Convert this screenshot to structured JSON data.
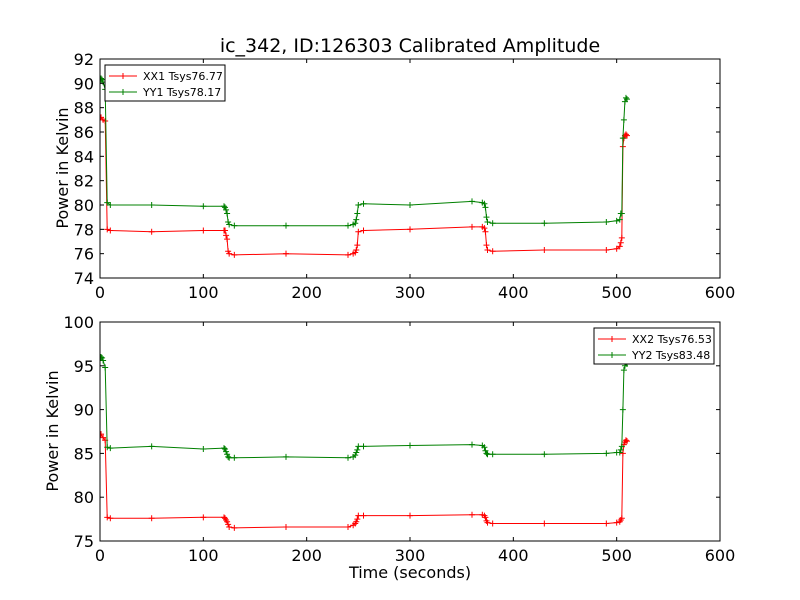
{
  "chart_data": [
    {
      "type": "line",
      "title": "ic_342, ID:126303 Calibrated Amplitude",
      "xlabel": "",
      "ylabel": "Power in Kelvin",
      "xlim": [
        0,
        600
      ],
      "ylim": [
        74,
        92
      ],
      "xticks": [
        "0",
        "100",
        "200",
        "300",
        "400",
        "500",
        "600"
      ],
      "yticks": [
        "74",
        "76",
        "78",
        "80",
        "82",
        "84",
        "86",
        "88",
        "90",
        "92"
      ],
      "legend_position": "top-left",
      "grid": false,
      "series": [
        {
          "name": "XX1 Tsys76.77",
          "color": "#ff0000",
          "x": [
            1,
            3,
            5,
            7,
            10,
            50,
            100,
            120,
            121,
            122,
            123,
            124,
            125,
            130,
            180,
            240,
            245,
            247,
            248,
            249,
            250,
            255,
            300,
            360,
            370,
            372,
            373,
            374,
            375,
            380,
            430,
            490,
            500,
            503,
            504,
            505,
            506,
            507,
            508,
            509,
            510
          ],
          "y": [
            87.2,
            87.0,
            86.9,
            78.0,
            77.9,
            77.8,
            77.9,
            77.9,
            77.9,
            77.5,
            77.2,
            76.2,
            76.0,
            75.9,
            76.0,
            75.9,
            76.0,
            76.1,
            76.3,
            76.7,
            77.8,
            77.9,
            78.0,
            78.2,
            78.2,
            78.1,
            77.8,
            76.7,
            76.3,
            76.2,
            76.3,
            76.3,
            76.4,
            76.6,
            76.9,
            77.3,
            84.8,
            85.5,
            85.7,
            85.8,
            85.7
          ]
        },
        {
          "name": "YY1 Tsys78.17",
          "color": "#008000",
          "x": [
            1,
            2,
            3,
            5,
            7,
            10,
            50,
            100,
            120,
            121,
            122,
            123,
            124,
            125,
            130,
            180,
            240,
            245,
            247,
            248,
            249,
            250,
            255,
            300,
            360,
            370,
            372,
            373,
            374,
            375,
            380,
            430,
            490,
            500,
            503,
            504,
            505,
            506,
            507,
            508,
            509,
            510
          ],
          "y": [
            90.4,
            90.3,
            90.1,
            89.5,
            80.2,
            80.0,
            80.0,
            79.9,
            79.9,
            79.8,
            79.6,
            79.3,
            78.6,
            78.4,
            78.3,
            78.3,
            78.3,
            78.4,
            78.5,
            78.8,
            79.3,
            80.0,
            80.1,
            80.0,
            80.3,
            80.2,
            80.1,
            79.8,
            79.0,
            78.6,
            78.5,
            78.5,
            78.6,
            78.7,
            78.8,
            79.3,
            79.3,
            85.5,
            87.0,
            88.5,
            88.8,
            88.7
          ]
        }
      ]
    },
    {
      "type": "line",
      "title": "",
      "xlabel": "Time (seconds)",
      "ylabel": "Power in Kelvin",
      "xlim": [
        0,
        600
      ],
      "ylim": [
        75,
        100
      ],
      "xticks": [
        "0",
        "100",
        "200",
        "300",
        "400",
        "500",
        "600"
      ],
      "yticks": [
        "75",
        "80",
        "85",
        "90",
        "95",
        "100"
      ],
      "legend_position": "top-right",
      "grid": false,
      "series": [
        {
          "name": "XX2 Tsys76.53",
          "color": "#ff0000",
          "x": [
            1,
            3,
            5,
            7,
            10,
            50,
            100,
            120,
            121,
            122,
            123,
            124,
            125,
            130,
            180,
            240,
            245,
            247,
            248,
            249,
            250,
            255,
            300,
            360,
            370,
            372,
            373,
            374,
            375,
            380,
            430,
            490,
            500,
            503,
            504,
            505,
            506,
            507,
            508,
            509,
            510
          ],
          "y": [
            87.2,
            86.8,
            86.5,
            77.7,
            77.6,
            77.6,
            77.7,
            77.7,
            77.6,
            77.4,
            77.2,
            76.9,
            76.6,
            76.5,
            76.6,
            76.6,
            76.8,
            77.0,
            77.2,
            77.5,
            77.9,
            77.9,
            77.9,
            78.0,
            78.0,
            77.9,
            77.7,
            77.3,
            77.1,
            77.0,
            77.0,
            77.0,
            77.1,
            77.2,
            77.4,
            77.6,
            85.0,
            86.0,
            86.3,
            86.5,
            86.4
          ]
        },
        {
          "name": "YY2 Tsys83.48",
          "color": "#008000",
          "x": [
            1,
            2,
            3,
            5,
            7,
            10,
            50,
            100,
            120,
            121,
            122,
            123,
            124,
            125,
            130,
            180,
            240,
            245,
            247,
            248,
            249,
            250,
            255,
            300,
            360,
            370,
            372,
            373,
            374,
            375,
            380,
            430,
            490,
            500,
            503,
            504,
            505,
            506,
            507,
            508,
            509,
            510
          ],
          "y": [
            96.0,
            95.9,
            95.6,
            94.8,
            85.7,
            85.6,
            85.8,
            85.5,
            85.6,
            85.5,
            85.2,
            84.9,
            84.6,
            84.5,
            84.5,
            84.6,
            84.5,
            84.6,
            84.8,
            85.1,
            85.4,
            85.8,
            85.8,
            85.9,
            86.0,
            85.9,
            85.7,
            85.3,
            85.0,
            84.9,
            84.9,
            84.9,
            85.0,
            85.1,
            85.1,
            85.4,
            85.8,
            90.0,
            94.5,
            95.0,
            95.3,
            95.2
          ]
        }
      ]
    }
  ]
}
